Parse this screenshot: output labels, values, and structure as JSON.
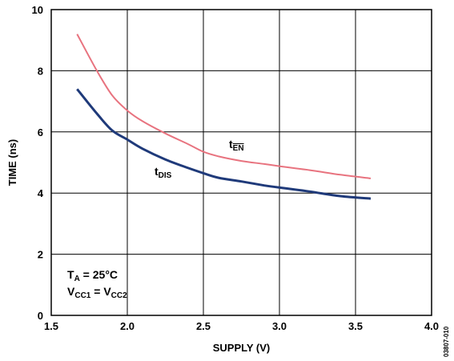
{
  "chart_data": {
    "type": "line",
    "xlabel": "SUPPLY (V)",
    "ylabel": "TIME (ns)",
    "xlim": [
      1.5,
      4.0
    ],
    "ylim": [
      0,
      10
    ],
    "x_ticks": [
      "1.5",
      "2.0",
      "2.5",
      "3.0",
      "3.5",
      "4.0"
    ],
    "y_ticks": [
      "0",
      "2",
      "4",
      "6",
      "8",
      "10"
    ],
    "grid": true,
    "series": [
      {
        "name_main": "t",
        "name_sub": "EN",
        "color": "#E8737F",
        "x": [
          1.67,
          1.8,
          1.9,
          2.0,
          2.1,
          2.25,
          2.4,
          2.5,
          2.6,
          2.75,
          2.9,
          3.0,
          3.2,
          3.4,
          3.6
        ],
        "y": [
          9.2,
          8.0,
          7.2,
          6.7,
          6.35,
          5.95,
          5.6,
          5.35,
          5.2,
          5.05,
          4.95,
          4.88,
          4.75,
          4.6,
          4.48
        ]
      },
      {
        "name_main": "t",
        "name_sub": "DIS",
        "color": "#1F3A7A",
        "x": [
          1.67,
          1.8,
          1.9,
          2.0,
          2.1,
          2.25,
          2.4,
          2.5,
          2.6,
          2.75,
          2.9,
          3.0,
          3.2,
          3.4,
          3.6
        ],
        "y": [
          7.4,
          6.6,
          6.05,
          5.75,
          5.45,
          5.1,
          4.82,
          4.65,
          4.5,
          4.38,
          4.25,
          4.18,
          4.05,
          3.9,
          3.82
        ]
      }
    ],
    "annotation": {
      "line1_main": "T",
      "line1_sub": "A",
      "line1_rest": " = 25°C",
      "line2_a_main": "V",
      "line2_a_sub": "CC1",
      "line2_mid": " = V",
      "line2_b_sub": "CC2"
    },
    "figure_code": "03807-010"
  }
}
